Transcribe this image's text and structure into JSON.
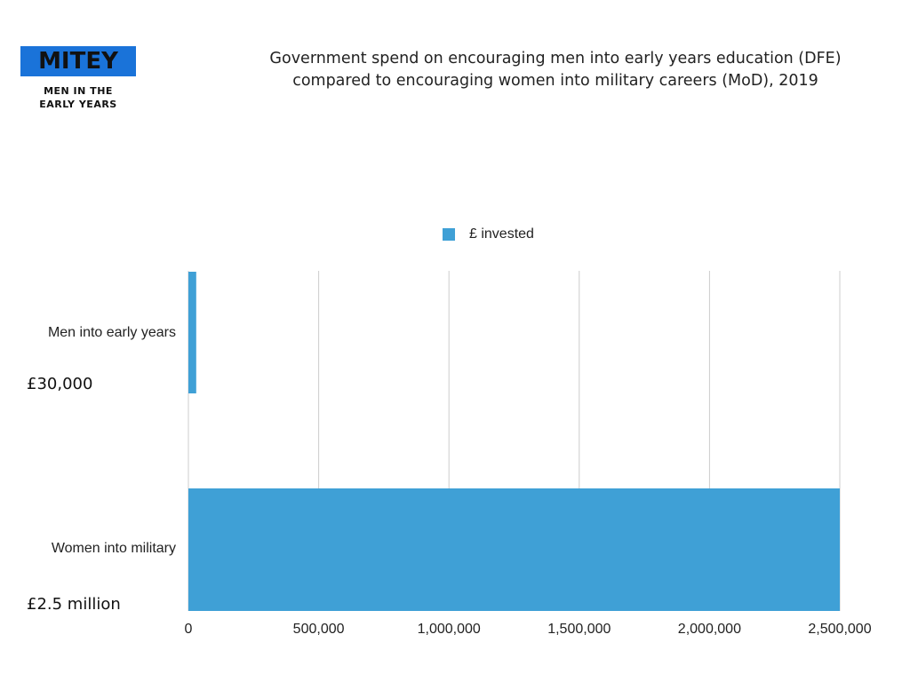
{
  "logo": {
    "name": "MITEY",
    "line1": "MEN IN THE",
    "line2": "EARLY YEARS"
  },
  "annotations": {
    "men": "£30,000",
    "women": "£2.5 million"
  },
  "chart_data": {
    "type": "bar",
    "orientation": "horizontal",
    "title_line1": "Government spend on encouraging men into early years education (DFE)",
    "title_line2": "compared to encouraging women into military careers (MoD), 2019",
    "categories": [
      "Men into early years",
      "Women into military"
    ],
    "series": [
      {
        "name": "£ invested",
        "values": [
          30000,
          2500000
        ],
        "color": "#3fa0d6"
      }
    ],
    "xlim": [
      0,
      2500000
    ],
    "xticks": [
      0,
      500000,
      1000000,
      1500000,
      2000000,
      2500000
    ],
    "xtick_labels": [
      "0",
      "500,000",
      "1,000,000",
      "1,500,000",
      "2,000,000",
      "2,500,000"
    ],
    "legend": "top-center",
    "grid": true
  }
}
